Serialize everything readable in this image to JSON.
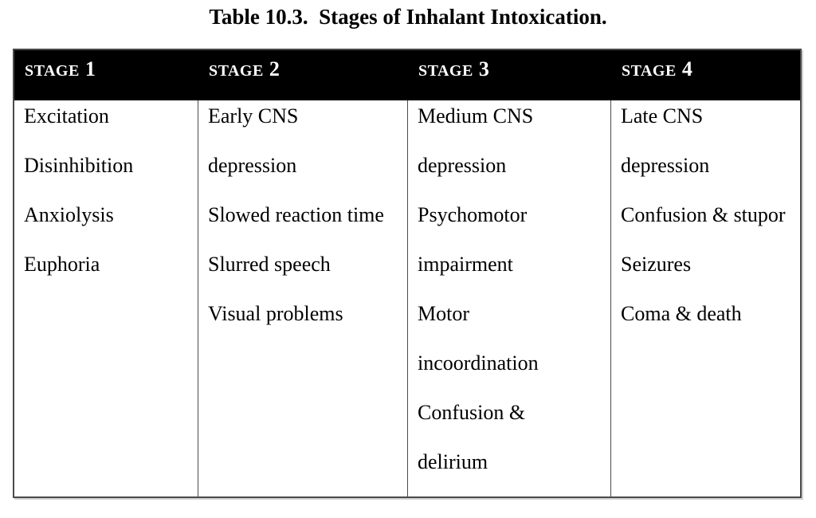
{
  "page": {
    "background_color": "#ffffff",
    "text_color": "#000000"
  },
  "title": "Table 10.3.  Stages of Inhalant Intoxication.",
  "table": {
    "header_bg_color": "#000000",
    "header_text_color": "#ffffff",
    "border_color": "#4a4a4a",
    "columns": [
      {
        "header_label": "STAGE",
        "header_number": "1",
        "items": [
          "Excitation",
          "Disinhibition",
          "Anxiolysis",
          "Euphoria"
        ],
        "lines": [
          "Excitation",
          "Disinhibition",
          "Anxiolysis",
          "Euphoria"
        ]
      },
      {
        "header_label": "STAGE",
        "header_number": "2",
        "items": [
          "Early CNS depression",
          "Slowed reaction time",
          "Slurred speech",
          "Visual problems"
        ],
        "lines": [
          "Early CNS",
          "depression",
          "Slowed reaction time",
          "Slurred speech",
          "Visual problems"
        ]
      },
      {
        "header_label": "STAGE",
        "header_number": "3",
        "items": [
          "Medium CNS depression",
          "Psychomotor impairment",
          "Motor incoordination",
          "Confusion & delirium"
        ],
        "lines": [
          "Medium CNS",
          "depression",
          "Psychomotor",
          "impairment",
          "Motor",
          "incoordination",
          "Confusion &",
          "delirium"
        ]
      },
      {
        "header_label": "STAGE",
        "header_number": "4",
        "items": [
          "Late CNS depression",
          "Confusion & stupor",
          "Seizures",
          "Coma & death"
        ],
        "lines": [
          "Late CNS",
          "depression",
          "Confusion & stupor",
          "Seizures",
          "Coma & death"
        ]
      }
    ]
  }
}
